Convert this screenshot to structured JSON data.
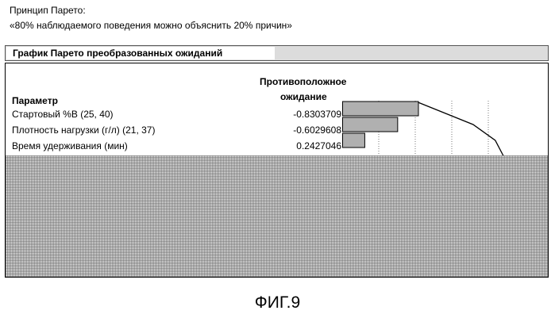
{
  "intro": {
    "line1": "Принцип Парето:",
    "line2": "«80% наблюдаемого поведения можно объяснить 20% причин»"
  },
  "panel": {
    "title": "График Парето преобразованных ожиданий",
    "column_param": "Параметр",
    "column_value_line1": "Противоположное",
    "column_value_line2": "ожидание",
    "rows": [
      {
        "name": "Стартовый %B (25, 40)",
        "value": "-0.8303709"
      },
      {
        "name": "Плотность нагрузки (г/л) (21, 37)",
        "value": "-0.6029608"
      },
      {
        "name": "Время удерживания (мин)",
        "value": "0.2427046"
      }
    ]
  },
  "chart_data": {
    "type": "bar",
    "categories": [
      "Стартовый %B (25, 40)",
      "Плотность нагрузки (г/л) (21, 37)",
      "Время удерживания (мин)"
    ],
    "values": [
      0.8303709,
      0.6029608,
      0.2427046
    ],
    "cumulative_line": true,
    "grid": true,
    "bar_color": "#b0b0b0"
  },
  "figure_label": "ФИГ.9"
}
